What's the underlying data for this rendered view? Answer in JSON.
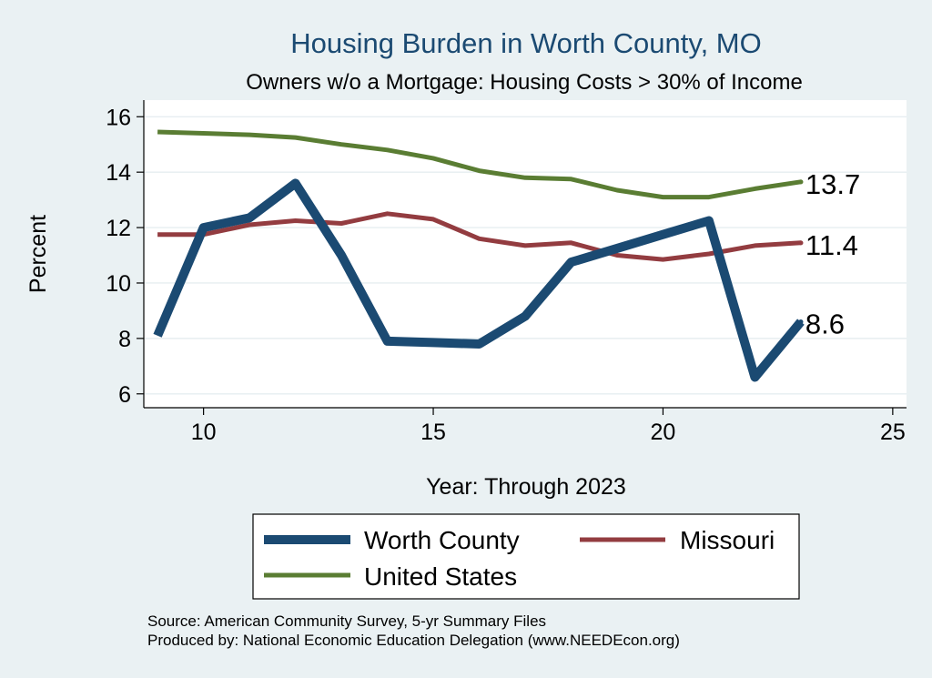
{
  "chart_data": {
    "type": "line",
    "title": "Housing Burden in Worth County, MO",
    "subtitle": "Owners w/o a Mortgage: Housing Costs > 30% of Income",
    "xlabel": "Year: Through 2023",
    "ylabel": "Percent",
    "xlim": [
      8.7,
      25.3
    ],
    "ylim": [
      5.5,
      16.6
    ],
    "x_ticks": [
      10,
      15,
      20,
      25
    ],
    "y_ticks": [
      6,
      8,
      10,
      12,
      14,
      16
    ],
    "grid": true,
    "legend_position": "bottom",
    "x": [
      9,
      10,
      11,
      12,
      13,
      14,
      15,
      16,
      17,
      18,
      19,
      20,
      21,
      22,
      23
    ],
    "series": [
      {
        "name": "Worth County",
        "color": "#1b4a72",
        "values": [
          8.1,
          12.0,
          12.35,
          13.6,
          11.0,
          7.9,
          7.85,
          7.8,
          8.8,
          10.75,
          11.25,
          11.75,
          12.25,
          6.6,
          8.6
        ],
        "end_label": "8.6"
      },
      {
        "name": "Missouri",
        "color": "#933c40",
        "values": [
          11.75,
          11.75,
          12.1,
          12.25,
          12.15,
          12.5,
          12.3,
          11.6,
          11.35,
          11.45,
          11.0,
          10.85,
          11.05,
          11.35,
          11.45
        ],
        "end_label": "11.4"
      },
      {
        "name": "United States",
        "color": "#5a7d33",
        "values": [
          15.45,
          15.4,
          15.35,
          15.25,
          15.0,
          14.8,
          14.5,
          14.05,
          13.8,
          13.75,
          13.35,
          13.1,
          13.1,
          13.4,
          13.65
        ],
        "end_label": "13.7"
      }
    ],
    "source": "Source: American Community Survey, 5-yr Summary Files",
    "produced_by": "Produced by: National Economic Education Delegation (www.NEEDEcon.org)"
  }
}
